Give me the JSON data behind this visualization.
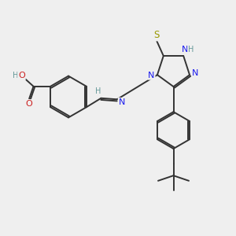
{
  "background_color": "#efefef",
  "C_col": "#333333",
  "N_col": "#1a1aee",
  "O_col": "#cc2020",
  "S_col": "#999900",
  "H_col": "#669999",
  "bond_color": "#333333",
  "bond_width": 1.4,
  "xlim": [
    0,
    10
  ],
  "ylim": [
    0,
    10
  ]
}
